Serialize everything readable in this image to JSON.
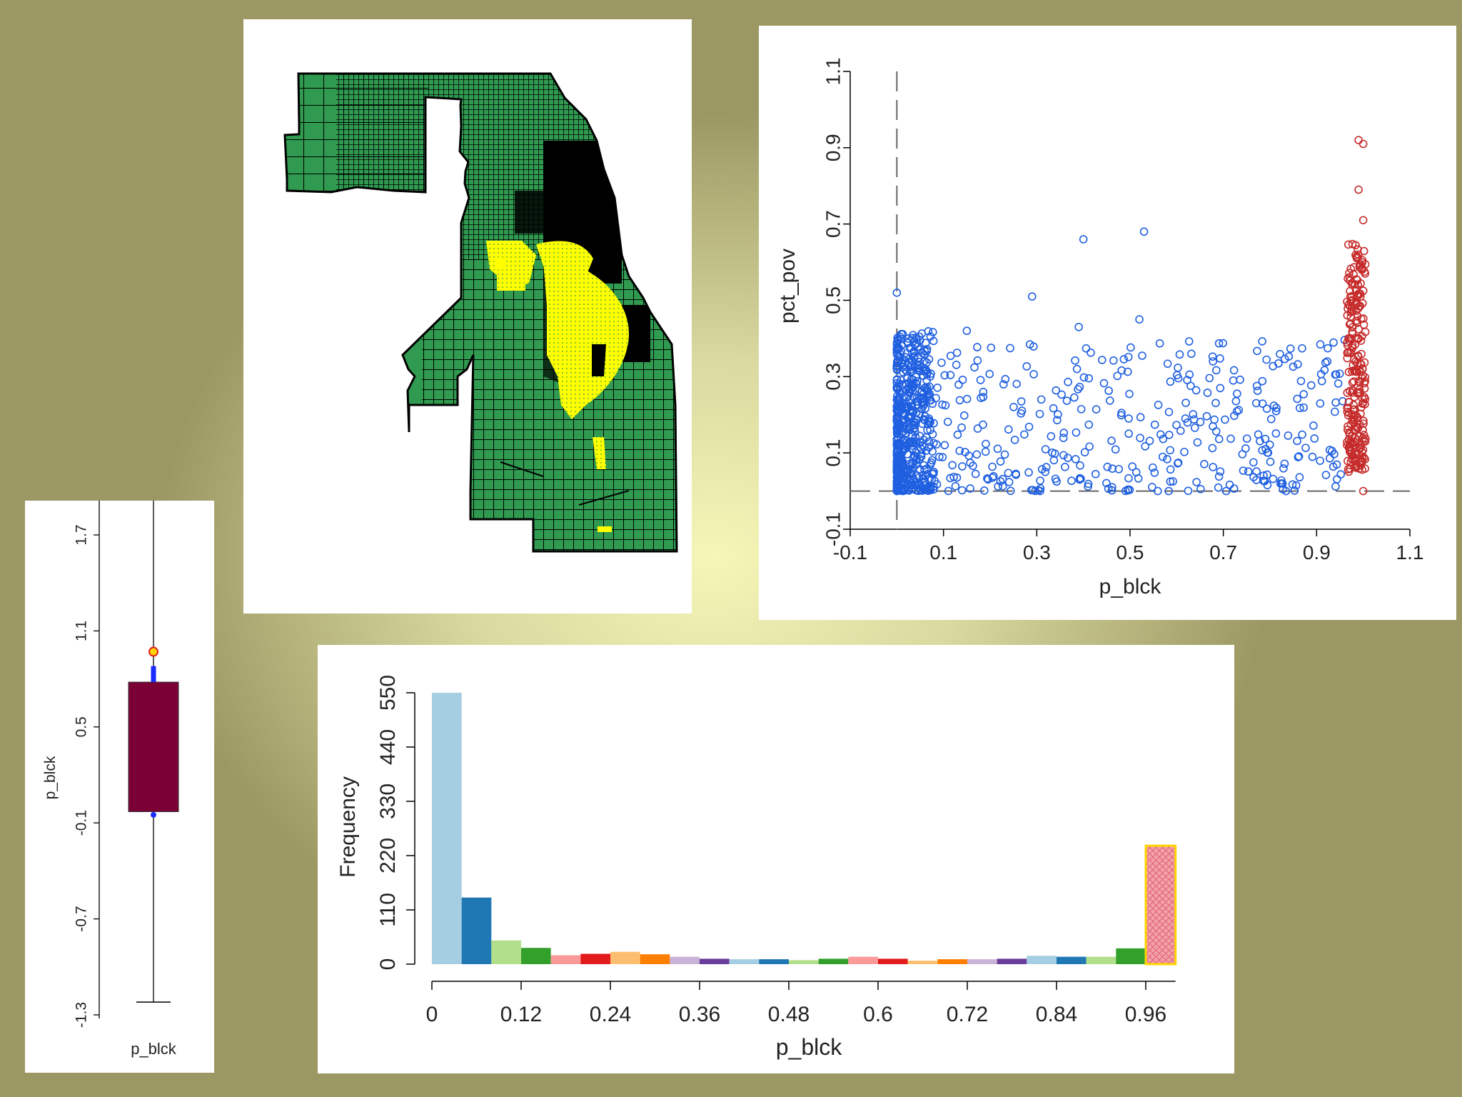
{
  "colors": {
    "map_fill": "#2f9a50",
    "map_highlight": "#ffff00",
    "scatter_blue": "#1f5fe0",
    "scatter_red": "#c62b2b",
    "box_fill": "#7a0036",
    "hist_last_fill": "#f4a2a6",
    "hist_last_border": "#ffd400"
  },
  "map": {
    "description_icon": "choropleth-map"
  },
  "chart_data": [
    {
      "id": "scatter",
      "type": "scatter",
      "xlabel": "p_blck",
      "ylabel": "pct_pov",
      "xlim": [
        -0.1,
        1.1
      ],
      "ylim": [
        -0.1,
        1.1
      ],
      "xticks": [
        "-0.1",
        "0.1",
        "0.3",
        "0.5",
        "0.7",
        "0.9",
        "1.1"
      ],
      "yticks": [
        "-0.1",
        "0.1",
        "0.3",
        "0.5",
        "0.7",
        "0.9",
        "1.1"
      ],
      "ref_lines": {
        "x": 0,
        "y": 0
      },
      "series": [
        {
          "color": "blue",
          "approx_count": 900,
          "x_range": [
            0,
            0.96
          ],
          "y_range": [
            0,
            0.68
          ]
        },
        {
          "color": "red",
          "approx_count": 240,
          "x_range": [
            0.96,
            1.0
          ],
          "y_range": [
            0,
            0.93
          ]
        }
      ],
      "sample_points_blue": [
        [
          0,
          0.52
        ],
        [
          0.4,
          0.66
        ],
        [
          0.53,
          0.68
        ],
        [
          0.29,
          0.51
        ],
        [
          0.52,
          0.45
        ],
        [
          0.39,
          0.43
        ],
        [
          0.15,
          0.42
        ]
      ],
      "sample_points_red": [
        [
          0.99,
          0.92
        ],
        [
          1.0,
          0.91
        ],
        [
          0.99,
          0.79
        ],
        [
          1.0,
          0.71
        ],
        [
          1.0,
          0.0
        ]
      ]
    },
    {
      "id": "boxplot",
      "type": "box",
      "xlabel": "p_blck",
      "ylabel": "p_blck",
      "ylim": [
        -1.3,
        1.7
      ],
      "yticks": [
        "-1.3",
        "-0.7",
        "-0.1",
        "0.5",
        "1.1",
        "1.7"
      ],
      "whisker_low": -1.22,
      "q1": -0.03,
      "q3": 0.78,
      "whisker_high": 1.97,
      "upper_markers": [
        0.88,
        0.97
      ],
      "lower_marker": -0.05
    },
    {
      "id": "histogram",
      "type": "bar",
      "xlabel": "p_blck",
      "ylabel": "Frequency",
      "ylim": [
        0,
        550
      ],
      "yticks": [
        "0",
        "110",
        "220",
        "330",
        "440",
        "550"
      ],
      "xticks": [
        "0",
        "0.12",
        "0.24",
        "0.36",
        "0.48",
        "0.6",
        "0.72",
        "0.84",
        "0.96"
      ],
      "bin_width": 0.04,
      "values": [
        550,
        135,
        48,
        33,
        18,
        21,
        25,
        20,
        15,
        11,
        10,
        10,
        8,
        11,
        15,
        11,
        7,
        10,
        10,
        11,
        17,
        15,
        15,
        32,
        240
      ],
      "bar_colors": [
        "#a6cee3",
        "#1f78b4",
        "#b2df8a",
        "#33a02c",
        "#fb9a99",
        "#e31a1c",
        "#fdbf6f",
        "#ff7f00",
        "#cab2d6",
        "#6a3d9a",
        "#a6cee3",
        "#1f78b4",
        "#b2df8a",
        "#33a02c",
        "#fb9a99",
        "#e31a1c",
        "#fdbf6f",
        "#ff7f00",
        "#cab2d6",
        "#6a3d9a",
        "#a6cee3",
        "#1f78b4",
        "#b2df8a",
        "#33a02c",
        "#f4a2a6"
      ]
    }
  ]
}
